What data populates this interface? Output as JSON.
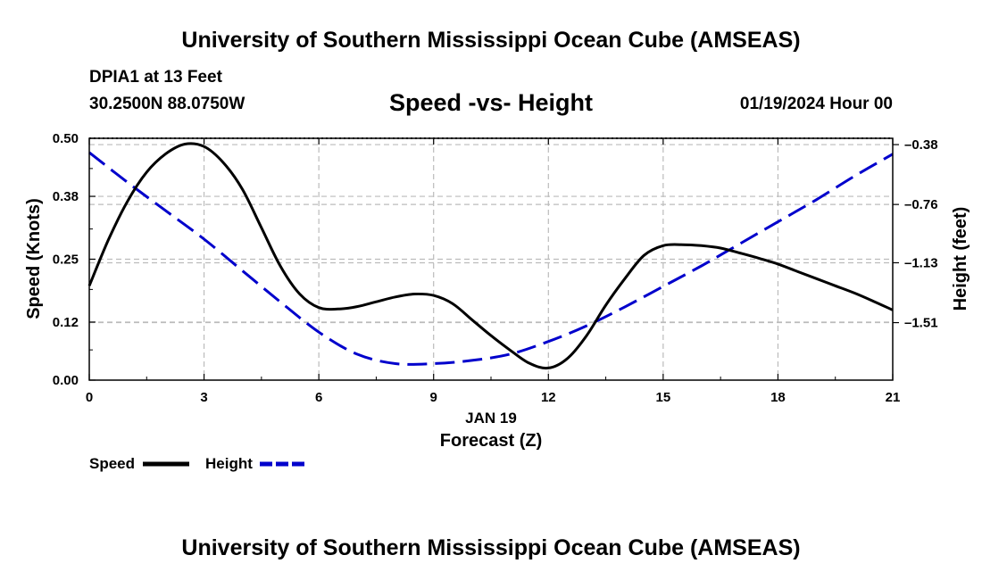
{
  "page": {
    "title_top": "University of Southern Mississippi Ocean Cube (AMSEAS)",
    "title_bottom": "University of Southern Mississippi Ocean Cube (AMSEAS)",
    "station": "DPIA1 at 13 Feet",
    "coordinates": "30.2500N  88.0750W",
    "date": "01/19/2024 Hour 00"
  },
  "colors": {
    "speed": "#000000",
    "height": "#0000cc",
    "grid": "#bbbbbb"
  },
  "chart_data": {
    "type": "line",
    "title": "Speed -vs- Height",
    "xlabel_date": "JAN 19",
    "xlabel": "Forecast (Z)",
    "ylabel": "Speed (Knots)",
    "y2label": "Height (feet)",
    "xlim": [
      0,
      21
    ],
    "x_ticks": [
      0,
      3,
      6,
      9,
      12,
      15,
      18,
      21
    ],
    "ylim": [
      0,
      0.5
    ],
    "y_ticks": [
      0.0,
      0.12,
      0.25,
      0.38,
      0.5
    ],
    "y_tick_labels": [
      "0.00",
      "0.12",
      "0.25",
      "0.38",
      "0.50"
    ],
    "y2lim": [
      -1.875,
      -0.34
    ],
    "y2_ticks": [
      -0.38,
      -0.76,
      -1.13,
      -1.51
    ],
    "y2_tick_labels": [
      "–0.38",
      "–0.76",
      "–1.13",
      "–1.51"
    ],
    "series": [
      {
        "name": "Speed",
        "axis": "left",
        "style": "solid",
        "x": [
          0,
          0.5,
          1,
          1.5,
          2,
          2.5,
          3,
          3.5,
          4,
          4.5,
          5,
          5.5,
          6,
          6.5,
          7,
          7.5,
          8,
          8.5,
          9,
          9.5,
          10,
          10.5,
          11,
          11.5,
          12,
          12.5,
          13,
          13.5,
          14,
          14.5,
          15,
          15.5,
          16,
          16.5,
          17,
          17.5,
          18,
          18.5,
          19,
          19.5,
          20,
          20.5,
          21
        ],
        "values": [
          0.195,
          0.29,
          0.37,
          0.43,
          0.468,
          0.488,
          0.483,
          0.45,
          0.395,
          0.315,
          0.235,
          0.178,
          0.15,
          0.147,
          0.152,
          0.162,
          0.172,
          0.178,
          0.175,
          0.158,
          0.125,
          0.092,
          0.062,
          0.035,
          0.025,
          0.045,
          0.092,
          0.155,
          0.21,
          0.258,
          0.278,
          0.28,
          0.278,
          0.273,
          0.263,
          0.252,
          0.24,
          0.225,
          0.21,
          0.195,
          0.18,
          0.163,
          0.145
        ]
      },
      {
        "name": "Height",
        "axis": "right",
        "style": "dashed",
        "x": [
          0,
          1,
          2,
          3,
          4,
          5,
          6,
          7,
          8,
          9,
          10,
          11,
          12,
          13,
          14,
          15,
          16,
          17,
          18,
          19,
          20,
          21
        ],
        "values": [
          -0.43,
          -0.62,
          -0.8,
          -0.98,
          -1.18,
          -1.38,
          -1.57,
          -1.71,
          -1.77,
          -1.77,
          -1.75,
          -1.71,
          -1.63,
          -1.53,
          -1.41,
          -1.28,
          -1.15,
          -1.01,
          -0.87,
          -0.73,
          -0.58,
          -0.44
        ]
      }
    ],
    "legend": {
      "position": "bottom-left",
      "speed_label": "Speed",
      "height_label": "Height"
    }
  }
}
